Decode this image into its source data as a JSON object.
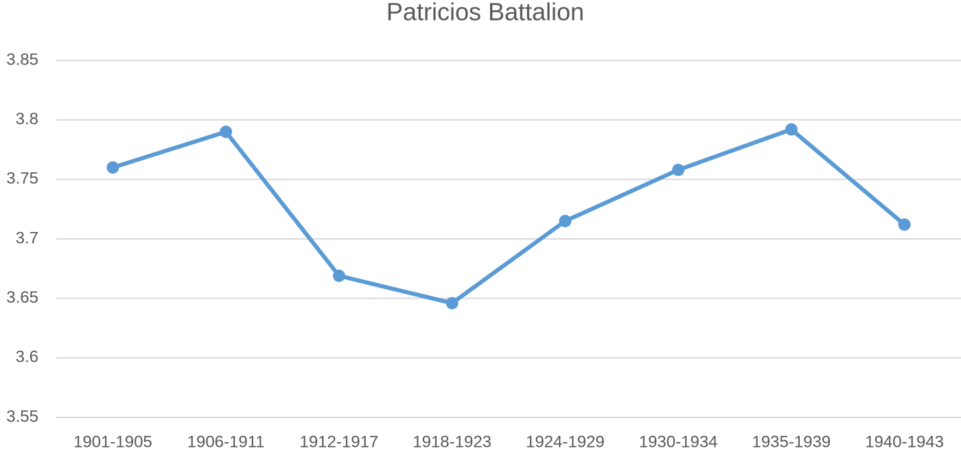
{
  "chart_data": {
    "type": "line",
    "title": "Patricios Battalion",
    "categories": [
      "1901-1905",
      "1906-1911",
      "1912-1917",
      "1918-1923",
      "1924-1929",
      "1930-1934",
      "1935-1939",
      "1940-1943"
    ],
    "values": [
      3.76,
      3.79,
      3.669,
      3.646,
      3.715,
      3.758,
      3.792,
      3.712
    ],
    "color": "#5b9bd5",
    "ylim": [
      3.55,
      3.85
    ],
    "yticks": [
      3.55,
      3.6,
      3.65,
      3.7,
      3.75,
      3.8,
      3.85
    ],
    "grid": true
  }
}
